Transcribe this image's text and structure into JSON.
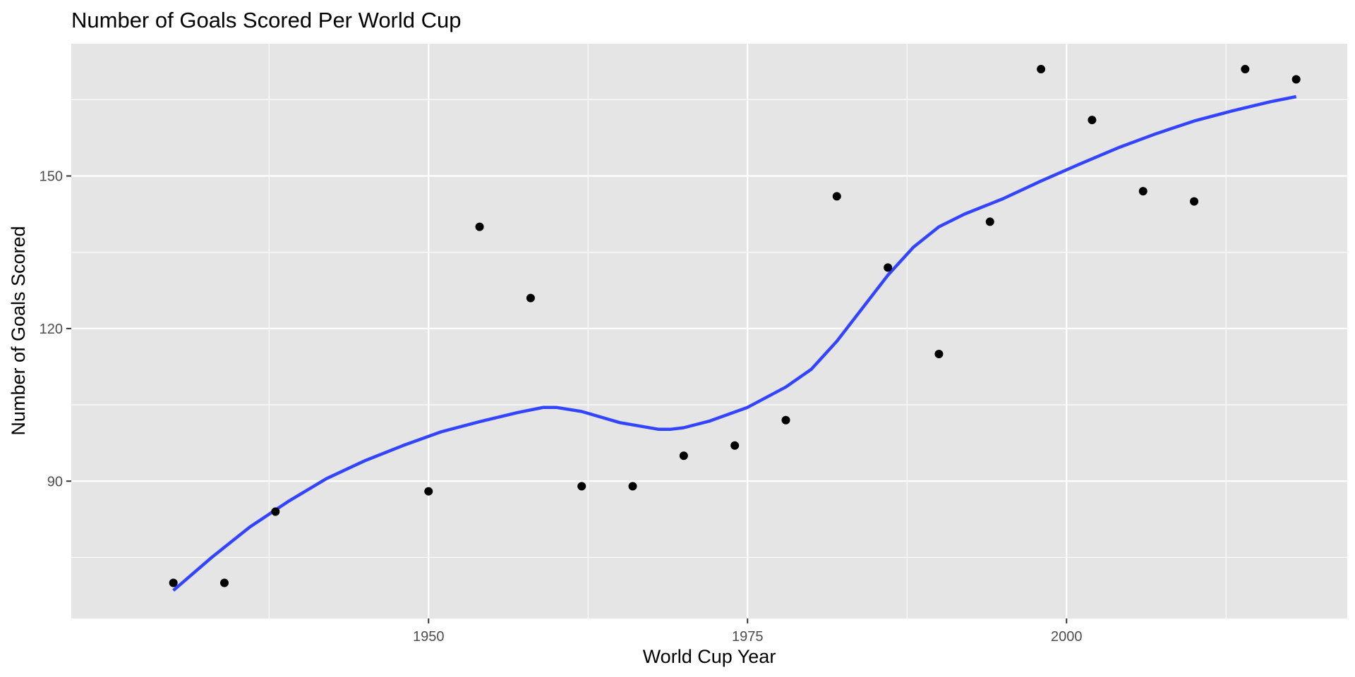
{
  "chart_data": {
    "type": "scatter",
    "title": "Number of Goals Scored Per World Cup",
    "xlabel": "World Cup Year",
    "ylabel": "Number of Goals Scored",
    "xlim": [
      1922,
      2022
    ],
    "ylim": [
      63,
      176
    ],
    "x_ticks": [
      1950,
      1975,
      2000
    ],
    "x_minor_ticks": [
      1937.5,
      1962.5,
      1987.5,
      2012.5
    ],
    "y_ticks": [
      90,
      120,
      150
    ],
    "y_minor_ticks": [
      75,
      105,
      135,
      165
    ],
    "grid": true,
    "legend": "none",
    "colors": {
      "panel": "#e5e5e5",
      "grid": "#ffffff",
      "points": "#000000",
      "smooth": "#3344ff"
    },
    "series": [
      {
        "type": "points",
        "x": [
          1930,
          1934,
          1938,
          1950,
          1954,
          1958,
          1962,
          1966,
          1970,
          1974,
          1978,
          1982,
          1986,
          1990,
          1994,
          1998,
          2002,
          2006,
          2010,
          2014,
          2018
        ],
        "y": [
          70,
          70,
          84,
          88,
          140,
          126,
          89,
          89,
          95,
          97,
          102,
          146,
          132,
          115,
          141,
          171,
          161,
          147,
          145,
          171,
          169
        ]
      },
      {
        "type": "smooth-line",
        "x": [
          1930,
          1933,
          1936,
          1939,
          1942,
          1945,
          1948,
          1951,
          1954,
          1957,
          1959,
          1960,
          1962,
          1965,
          1968,
          1969,
          1970,
          1972,
          1975,
          1978,
          1980,
          1982,
          1984,
          1986,
          1988,
          1990,
          1992,
          1995,
          1998,
          2001,
          2004,
          2007,
          2010,
          2013,
          2016,
          2018
        ],
        "y": [
          68.5,
          75,
          81,
          86,
          90.5,
          94,
          97,
          99.7,
          101.7,
          103.5,
          104.5,
          104.5,
          103.7,
          101.5,
          100.2,
          100.2,
          100.5,
          101.8,
          104.5,
          108.5,
          112,
          117.5,
          124,
          130.5,
          136,
          140,
          142.5,
          145.5,
          149,
          152.3,
          155.5,
          158.3,
          160.8,
          162.8,
          164.6,
          165.6
        ]
      }
    ]
  }
}
